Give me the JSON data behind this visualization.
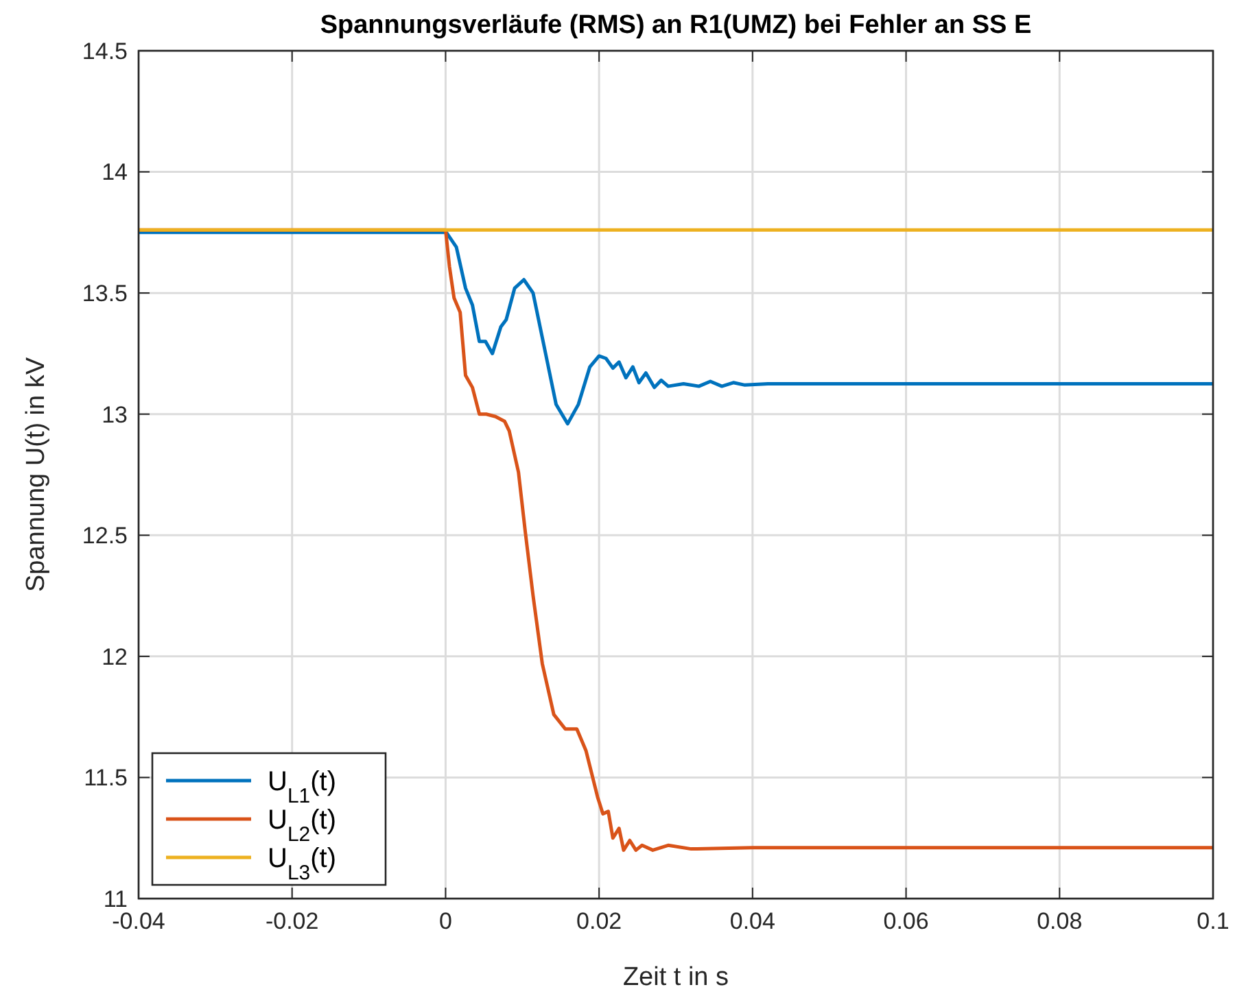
{
  "chart_data": {
    "type": "line",
    "title": "Spannungsverläufe (RMS) an R1(UMZ) bei Fehler an SS E",
    "xlabel": "Zeit t in s",
    "ylabel": "Spannung  U(t) in kV",
    "xlim": [
      -0.04,
      0.1
    ],
    "xticks": [
      -0.04,
      -0.02,
      0,
      0.02,
      0.04,
      0.06,
      0.08,
      0.1
    ],
    "ylim": [
      11,
      14.5
    ],
    "yticks": [
      11,
      11.5,
      12,
      12.5,
      13,
      13.5,
      14,
      14.5
    ],
    "grid": true,
    "legend": "bottom left",
    "line_style": "solid",
    "marker": "none",
    "series": [
      {
        "name": "U$_{L1}$(t)",
        "color": "#0072bd",
        "x": [
          -0.04,
          0,
          0.0001,
          0.0014,
          0.0026,
          0.0035,
          0.0044,
          0.0052,
          0.0061,
          0.0072,
          0.0079,
          0.009,
          0.0102,
          0.0114,
          0.0129,
          0.0144,
          0.0159,
          0.0173,
          0.0188,
          0.02,
          0.0209,
          0.0218,
          0.0226,
          0.0235,
          0.0244,
          0.0252,
          0.0261,
          0.0272,
          0.0281,
          0.029,
          0.031,
          0.033,
          0.0345,
          0.036,
          0.0375,
          0.039,
          0.042,
          0.05,
          0.1
        ],
        "values": [
          13.75,
          13.75,
          13.75,
          13.69,
          13.52,
          13.45,
          13.3,
          13.3,
          13.25,
          13.36,
          13.39,
          13.52,
          13.555,
          13.5,
          13.27,
          13.04,
          12.96,
          13.04,
          13.195,
          13.24,
          13.23,
          13.19,
          13.215,
          13.15,
          13.195,
          13.13,
          13.17,
          13.11,
          13.14,
          13.115,
          13.125,
          13.115,
          13.135,
          13.115,
          13.13,
          13.12,
          13.125,
          13.125,
          13.125
        ]
      },
      {
        "name": "U$_{L2}$(t)",
        "color": "#d95319",
        "x": [
          -0.04,
          0,
          0.0005,
          0.0011,
          0.0019,
          0.0026,
          0.0035,
          0.0044,
          0.0053,
          0.0065,
          0.0077,
          0.0083,
          0.0095,
          0.0104,
          0.0114,
          0.0126,
          0.0141,
          0.0156,
          0.0171,
          0.0183,
          0.0198,
          0.0205,
          0.0212,
          0.0218,
          0.0226,
          0.0232,
          0.024,
          0.0248,
          0.0256,
          0.027,
          0.029,
          0.032,
          0.04,
          0.1
        ],
        "values": [
          13.76,
          13.76,
          13.61,
          13.48,
          13.42,
          13.16,
          13.11,
          13.0,
          13.0,
          12.99,
          12.97,
          12.93,
          12.76,
          12.51,
          12.25,
          11.97,
          11.76,
          11.7,
          11.7,
          11.61,
          11.42,
          11.35,
          11.36,
          11.25,
          11.29,
          11.2,
          11.24,
          11.2,
          11.22,
          11.2,
          11.22,
          11.205,
          11.21,
          11.21
        ]
      },
      {
        "name": "U$_{L3}$(t)",
        "color": "#edb120",
        "x": [
          -0.04,
          0.1
        ],
        "values": [
          13.76,
          13.76
        ]
      }
    ]
  }
}
